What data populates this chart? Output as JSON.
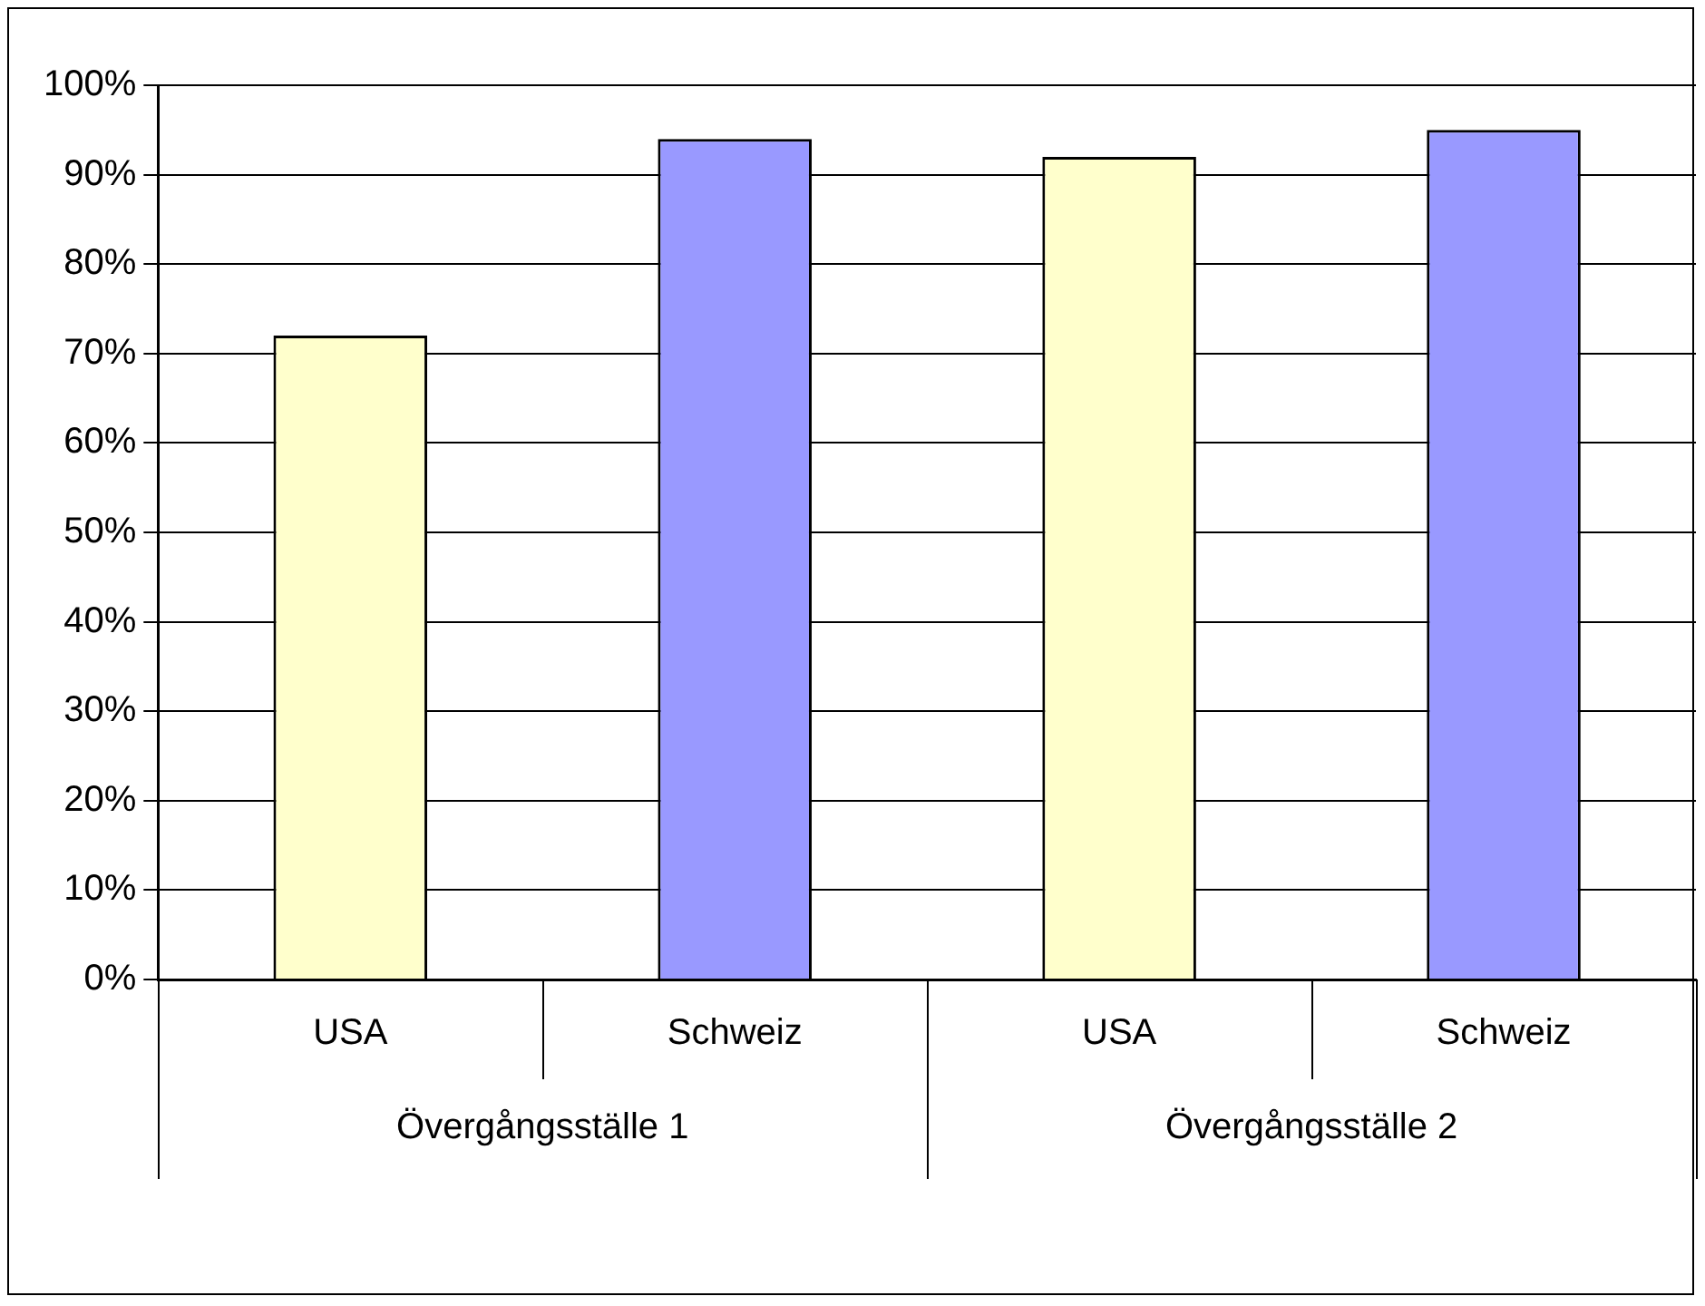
{
  "chart_data": {
    "type": "bar",
    "categories": [
      "USA",
      "Schweiz",
      "USA",
      "Schweiz"
    ],
    "values": [
      72,
      94,
      92,
      95
    ],
    "colors": [
      "#ffffcc",
      "#9999ff",
      "#ffffcc",
      "#9999ff"
    ],
    "ylim": [
      0,
      100
    ],
    "yticks": [
      {
        "value": 0,
        "label": "0%"
      },
      {
        "value": 10,
        "label": "10%"
      },
      {
        "value": 20,
        "label": "20%"
      },
      {
        "value": 30,
        "label": "30%"
      },
      {
        "value": 40,
        "label": "40%"
      },
      {
        "value": 50,
        "label": "50%"
      },
      {
        "value": 60,
        "label": "60%"
      },
      {
        "value": 70,
        "label": "70%"
      },
      {
        "value": 80,
        "label": "80%"
      },
      {
        "value": 90,
        "label": "90%"
      },
      {
        "value": 100,
        "label": "100%"
      }
    ],
    "grid": "y",
    "annotations": [
      "Övergångsställe 1",
      "Övergångsställe 2"
    ]
  }
}
